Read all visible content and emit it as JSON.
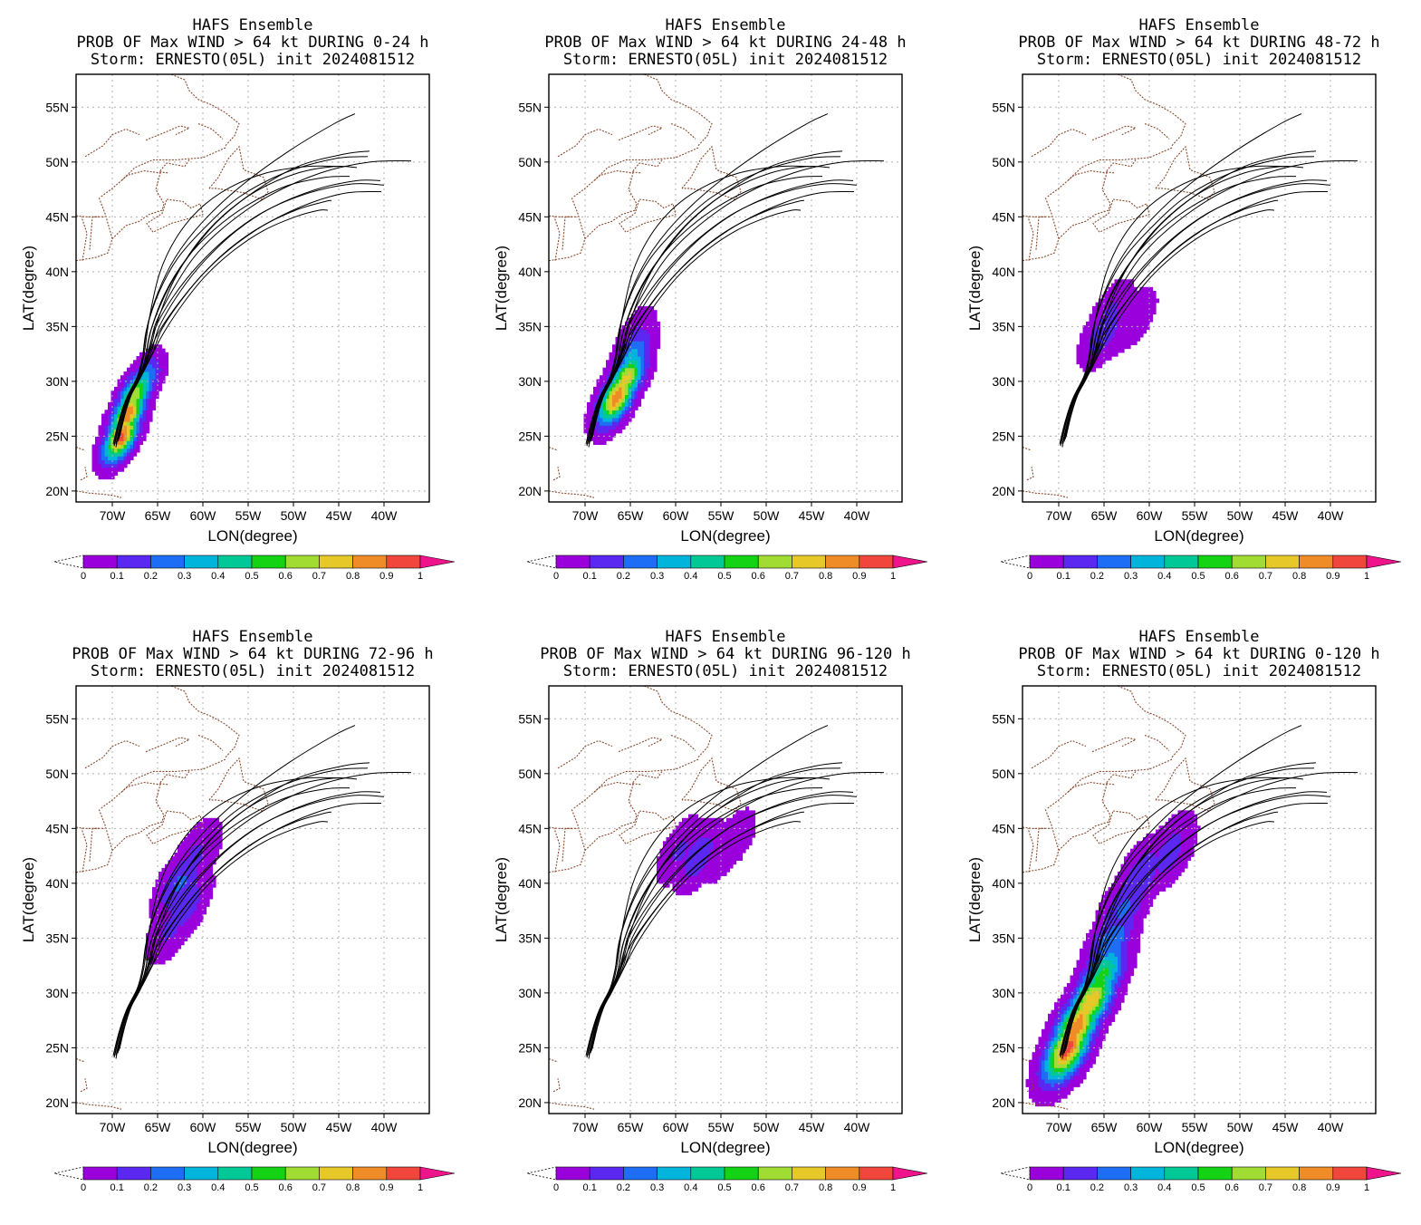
{
  "figure": {
    "colors": {
      "coast": "#8b4a2e",
      "grid": "#b0b0b0",
      "track": "#000000",
      "frame": "#000000",
      "colorbar": [
        "#9a00dc",
        "#5a28f0",
        "#1e6ef5",
        "#00b4dc",
        "#00c896",
        "#14d214",
        "#a0dc32",
        "#e6c828",
        "#ef8c28",
        "#f0463c"
      ],
      "over": "#f0148c"
    },
    "shared": {
      "xlabel": "LON(degree)",
      "ylabel": "LAT(degree)",
      "lon_ticks": [
        "70W",
        "65W",
        "60W",
        "55W",
        "50W",
        "45W",
        "40W"
      ],
      "lat_ticks": [
        "20N",
        "25N",
        "30N",
        "35N",
        "40N",
        "45N",
        "50N",
        "55N"
      ],
      "colorbar_labels": [
        "0",
        "0.1",
        "0.2",
        "0.3",
        "0.4",
        "0.5",
        "0.6",
        "0.7",
        "0.8",
        "0.9",
        "1"
      ]
    },
    "panels": [
      {
        "title1": "HAFS Ensemble",
        "title2": "PROB OF Max WIND > 64 kt DURING  0-24 h",
        "title3": "Storm: ERNESTO(05L) init 2024081512"
      },
      {
        "title1": "HAFS Ensemble",
        "title2": "PROB OF Max WIND > 64 kt DURING 24-48 h",
        "title3": "Storm: ERNESTO(05L) init 2024081512"
      },
      {
        "title1": "HAFS Ensemble",
        "title2": "PROB OF Max WIND > 64 kt DURING 48-72 h",
        "title3": "Storm: ERNESTO(05L) init 2024081512"
      },
      {
        "title1": "HAFS Ensemble",
        "title2": "PROB OF Max WIND > 64 kt DURING 72-96 h",
        "title3": "Storm: ERNESTO(05L) init 2024081512"
      },
      {
        "title1": "HAFS Ensemble",
        "title2": "PROB OF Max WIND > 64 kt DURING 96-120 h",
        "title3": "Storm: ERNESTO(05L) init 2024081512"
      },
      {
        "title1": "HAFS Ensemble",
        "title2": "PROB OF Max WIND > 64 kt DURING 0-120 h",
        "title3": "Storm: ERNESTO(05L) init 2024081512"
      }
    ]
  },
  "chart_data": {
    "type": "heatmap",
    "projection": "lat-lon",
    "xlim": [
      -74,
      -35
    ],
    "ylim": [
      19,
      58
    ],
    "x_unit": "degree longitude",
    "y_unit": "degree latitude",
    "grid": true,
    "colorbar_levels": [
      0,
      0.1,
      0.2,
      0.3,
      0.4,
      0.5,
      0.6,
      0.7,
      0.8,
      0.9,
      1
    ],
    "ensemble_tracks": [
      [
        [
          -69.8,
          24.2
        ],
        [
          -69.2,
          26.5
        ],
        [
          -68.4,
          28.5
        ],
        [
          -67.2,
          30.5
        ],
        [
          -66.6,
          32.5
        ],
        [
          -66.0,
          35.5
        ],
        [
          -64.5,
          39.0
        ],
        [
          -62.5,
          42.0
        ],
        [
          -59.5,
          45.0
        ],
        [
          -55.5,
          48.0
        ],
        [
          -50.5,
          51.0
        ],
        [
          -45.5,
          53.5
        ],
        [
          -43.2,
          54.4
        ]
      ],
      [
        [
          -69.6,
          24.0
        ],
        [
          -69.0,
          26.4
        ],
        [
          -68.2,
          28.4
        ],
        [
          -67.0,
          30.3
        ],
        [
          -66.3,
          32.3
        ],
        [
          -65.6,
          35.0
        ],
        [
          -63.8,
          38.5
        ],
        [
          -61.5,
          41.5
        ],
        [
          -58.5,
          44.5
        ],
        [
          -54.5,
          47.2
        ],
        [
          -49.5,
          49.6
        ],
        [
          -44.5,
          50.7
        ],
        [
          -41.6,
          51.0
        ]
      ],
      [
        [
          -69.4,
          24.5
        ],
        [
          -68.8,
          26.6
        ],
        [
          -68.0,
          28.6
        ],
        [
          -66.8,
          30.5
        ],
        [
          -66.0,
          32.5
        ],
        [
          -65.2,
          35.3
        ],
        [
          -63.0,
          38.8
        ],
        [
          -60.5,
          41.8
        ],
        [
          -57.0,
          44.5
        ],
        [
          -52.5,
          47.0
        ],
        [
          -47.0,
          49.0
        ],
        [
          -41.5,
          50.0
        ],
        [
          -37.0,
          50.1
        ]
      ],
      [
        [
          -69.9,
          24.3
        ],
        [
          -69.3,
          26.3
        ],
        [
          -68.5,
          28.3
        ],
        [
          -67.3,
          30.2
        ],
        [
          -66.7,
          32.0
        ],
        [
          -66.2,
          34.8
        ],
        [
          -64.8,
          38.2
        ],
        [
          -62.8,
          41.2
        ],
        [
          -59.8,
          44.0
        ],
        [
          -56.0,
          46.8
        ],
        [
          -51.0,
          49.0
        ],
        [
          -45.5,
          50.3
        ],
        [
          -41.8,
          50.5
        ]
      ],
      [
        [
          -69.5,
          24.6
        ],
        [
          -68.9,
          26.7
        ],
        [
          -68.1,
          28.7
        ],
        [
          -66.9,
          30.6
        ],
        [
          -65.8,
          32.4
        ],
        [
          -64.8,
          35.0
        ],
        [
          -62.5,
          38.2
        ],
        [
          -59.8,
          41.0
        ],
        [
          -56.5,
          43.6
        ],
        [
          -52.5,
          45.8
        ],
        [
          -47.5,
          47.5
        ],
        [
          -43.0,
          48.3
        ],
        [
          -40.4,
          48.3
        ]
      ],
      [
        [
          -69.7,
          24.4
        ],
        [
          -69.1,
          26.5
        ],
        [
          -68.3,
          28.5
        ],
        [
          -67.1,
          30.4
        ],
        [
          -66.2,
          32.2
        ],
        [
          -65.3,
          34.8
        ],
        [
          -63.2,
          37.8
        ],
        [
          -60.5,
          40.6
        ],
        [
          -57.2,
          43.2
        ],
        [
          -53.2,
          45.5
        ],
        [
          -48.2,
          47.2
        ],
        [
          -43.5,
          48.0
        ],
        [
          -40.0,
          47.9
        ]
      ],
      [
        [
          -69.3,
          24.7
        ],
        [
          -68.7,
          26.8
        ],
        [
          -67.9,
          28.8
        ],
        [
          -66.7,
          30.7
        ],
        [
          -65.6,
          32.5
        ],
        [
          -64.5,
          34.8
        ],
        [
          -62.2,
          37.6
        ],
        [
          -59.5,
          40.2
        ],
        [
          -56.2,
          42.6
        ],
        [
          -52.5,
          44.6
        ],
        [
          -48.0,
          46.3
        ],
        [
          -44.0,
          47.2
        ],
        [
          -40.3,
          47.3
        ]
      ],
      [
        [
          -69.6,
          24.3
        ],
        [
          -69.0,
          26.4
        ],
        [
          -68.2,
          28.4
        ],
        [
          -67.0,
          30.3
        ],
        [
          -66.1,
          32.1
        ],
        [
          -65.0,
          34.3
        ],
        [
          -62.8,
          37.0
        ],
        [
          -60.2,
          39.6
        ],
        [
          -57.2,
          42.0
        ],
        [
          -53.8,
          44.0
        ],
        [
          -49.8,
          45.6
        ],
        [
          -46.5,
          46.4
        ],
        [
          -45.8,
          46.5
        ]
      ],
      [
        [
          -69.2,
          24.9
        ],
        [
          -68.6,
          27.0
        ],
        [
          -67.8,
          29.0
        ],
        [
          -66.6,
          30.8
        ],
        [
          -65.5,
          32.6
        ],
        [
          -64.2,
          34.6
        ],
        [
          -62.0,
          37.3
        ],
        [
          -59.5,
          39.8
        ],
        [
          -56.5,
          42.0
        ],
        [
          -53.2,
          43.8
        ],
        [
          -49.8,
          45.0
        ],
        [
          -47.2,
          45.6
        ],
        [
          -46.2,
          45.6
        ]
      ],
      [
        [
          -69.8,
          24.1
        ],
        [
          -69.2,
          26.2
        ],
        [
          -68.4,
          28.2
        ],
        [
          -67.2,
          30.1
        ],
        [
          -66.4,
          31.9
        ],
        [
          -65.8,
          34.5
        ],
        [
          -64.2,
          38.0
        ],
        [
          -61.8,
          41.2
        ],
        [
          -58.8,
          43.8
        ],
        [
          -55.2,
          46.0
        ],
        [
          -50.8,
          47.8
        ],
        [
          -46.5,
          48.6
        ],
        [
          -43.8,
          48.7
        ]
      ],
      [
        [
          -69.4,
          24.8
        ],
        [
          -68.8,
          26.9
        ],
        [
          -68.0,
          28.9
        ],
        [
          -66.8,
          30.8
        ],
        [
          -65.9,
          32.6
        ],
        [
          -65.0,
          35.5
        ],
        [
          -63.2,
          39.2
        ],
        [
          -60.8,
          42.4
        ],
        [
          -57.8,
          45.1
        ],
        [
          -54.0,
          47.4
        ],
        [
          -49.5,
          49.0
        ],
        [
          -45.5,
          49.6
        ],
        [
          -43.0,
          49.5
        ]
      ],
      [
        [
          -69.7,
          24.5
        ],
        [
          -69.1,
          26.6
        ],
        [
          -68.3,
          28.6
        ],
        [
          -67.1,
          30.5
        ],
        [
          -66.5,
          32.4
        ],
        [
          -65.9,
          35.8
        ],
        [
          -64.8,
          39.8
        ],
        [
          -63.0,
          43.0
        ],
        [
          -60.5,
          45.6
        ],
        [
          -57.2,
          47.6
        ],
        [
          -53.0,
          49.0
        ],
        [
          -48.5,
          49.6
        ],
        [
          -45.0,
          49.6
        ]
      ]
    ],
    "probability_fields": [
      {
        "period": "0-24 h",
        "centers": [
          [
            -69.0,
            25.0,
            0.95
          ],
          [
            -68.3,
            27.0,
            0.9
          ],
          [
            -67.5,
            28.8,
            0.7
          ],
          [
            -66.7,
            29.8,
            0.4
          ]
        ],
        "spread": 2.0
      },
      {
        "period": "24-48 h",
        "centers": [
          [
            -66.5,
            28.6,
            0.9
          ],
          [
            -65.5,
            30.2,
            0.75
          ],
          [
            -64.8,
            32.2,
            0.35
          ],
          [
            -64.5,
            34.0,
            0.12
          ]
        ],
        "spread": 2.2
      },
      {
        "period": "48-72 h",
        "centers": [
          [
            -65.0,
            34.5,
            0.18
          ],
          [
            -64.2,
            36.2,
            0.12
          ],
          [
            -63.0,
            35.2,
            0.1
          ],
          [
            -61.5,
            35.8,
            0.08
          ]
        ],
        "spread": 2.4
      },
      {
        "period": "72-96 h",
        "centers": [
          [
            -62.5,
            40.0,
            0.22
          ],
          [
            -62.0,
            38.0,
            0.18
          ],
          [
            -63.5,
            36.0,
            0.12
          ],
          [
            -60.8,
            42.5,
            0.12
          ]
        ],
        "spread": 2.6
      },
      {
        "period": "96-120 h",
        "centers": [
          [
            -57.5,
            42.5,
            0.18
          ],
          [
            -59.5,
            43.0,
            0.12
          ],
          [
            -55.0,
            43.0,
            0.1
          ],
          [
            -53.5,
            44.0,
            0.08
          ]
        ],
        "spread": 2.4
      },
      {
        "period": "0-120 h",
        "centers": [
          [
            -69.0,
            25.0,
            0.95
          ],
          [
            -68.0,
            27.0,
            0.9
          ],
          [
            -66.5,
            29.2,
            0.8
          ],
          [
            -65.3,
            31.5,
            0.55
          ],
          [
            -64.3,
            34.5,
            0.3
          ],
          [
            -62.8,
            37.8,
            0.22
          ],
          [
            -60.8,
            40.8,
            0.18
          ],
          [
            -57.8,
            42.8,
            0.15
          ]
        ],
        "spread": 2.7
      }
    ]
  }
}
